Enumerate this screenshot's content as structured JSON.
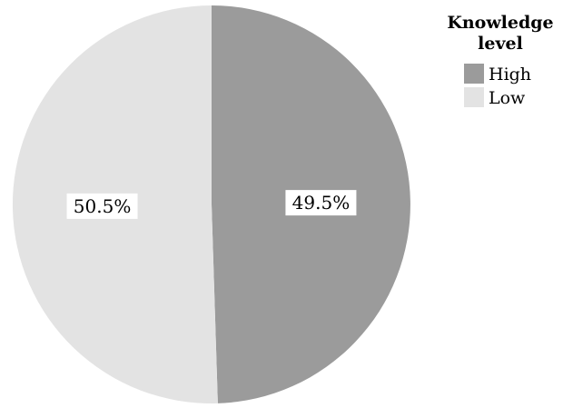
{
  "chart_data": {
    "type": "pie",
    "slices": [
      {
        "label": "High",
        "value": 49.5,
        "display": "49.5%",
        "color": "#9b9b9b"
      },
      {
        "label": "Low",
        "value": 50.5,
        "display": "50.5%",
        "color": "#e3e3e3"
      }
    ],
    "start_angle_deg": 0,
    "direction": "clockwise",
    "legend": {
      "title_line1": "Knowledge",
      "title_line2": "level",
      "placement": "top-right"
    }
  }
}
